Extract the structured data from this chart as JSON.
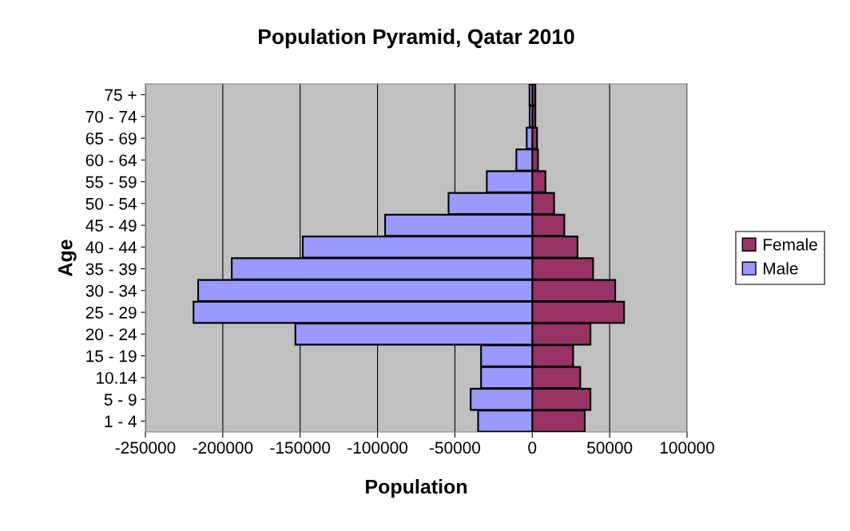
{
  "chart_data": {
    "type": "bar",
    "orientation": "horizontal",
    "stacked": true,
    "title": "Population Pyramid, Qatar 2010",
    "xlabel": "Population",
    "ylabel": "Age",
    "categories": [
      "75 +",
      "70 - 74",
      "65 - 69",
      "60 - 64",
      "55 - 59",
      "50 - 54",
      "45 - 49",
      "40 - 44",
      "35 - 39",
      "30 - 34",
      "25 - 29",
      "20 - 24",
      "15 - 19",
      "10.14",
      "5 - 9",
      "1 - 4"
    ],
    "series": [
      {
        "name": "Female",
        "color": "#993366",
        "values": [
          2000,
          2000,
          3100,
          3700,
          8500,
          14100,
          20700,
          29200,
          39300,
          53600,
          59300,
          37600,
          26400,
          31000,
          37600,
          33900
        ]
      },
      {
        "name": "Male",
        "color": "#9999ff",
        "values": [
          -1800,
          -1700,
          -3600,
          -10300,
          -29400,
          -54100,
          -95100,
          -148300,
          -194200,
          -215900,
          -218900,
          -153100,
          -33100,
          -33100,
          -39800,
          -35000
        ]
      }
    ],
    "xlim": [
      -250000,
      100000
    ],
    "xticks": [
      -250000,
      -200000,
      -150000,
      -100000,
      -50000,
      0,
      50000,
      100000
    ],
    "grid": "x",
    "legend": "right"
  }
}
